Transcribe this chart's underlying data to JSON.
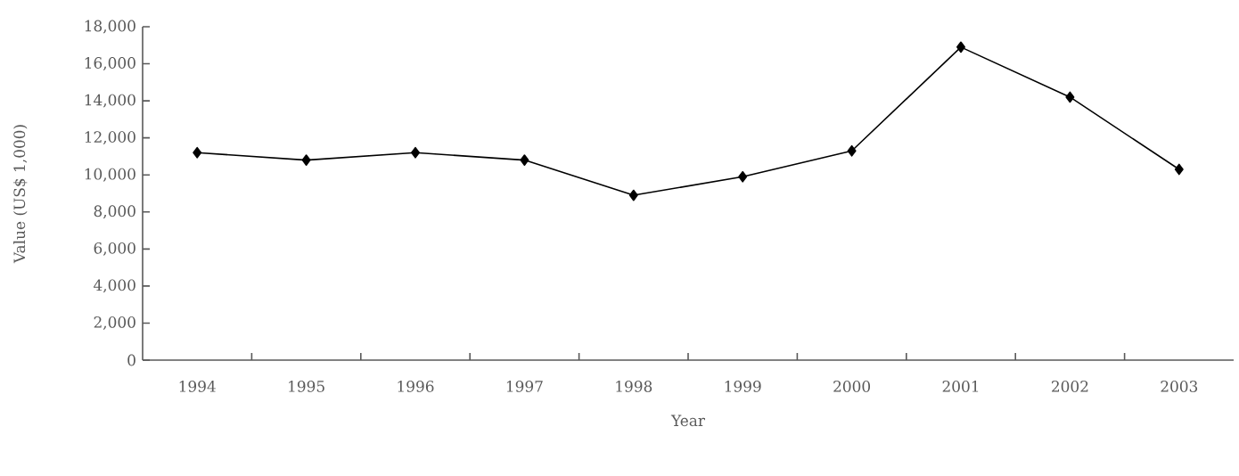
{
  "chart_data": {
    "type": "line",
    "xlabel": "Year",
    "ylabel": "Value (US$ 1,000)",
    "categories": [
      "1994",
      "1995",
      "1996",
      "1997",
      "1998",
      "1999",
      "2000",
      "2001",
      "2002",
      "2003"
    ],
    "series": [
      {
        "color": "#000000",
        "values": [
          11200,
          10800,
          11200,
          10800,
          8900,
          9900,
          11300,
          16900,
          14200,
          10300
        ]
      }
    ],
    "ylim": [
      0,
      18000
    ],
    "yticks": [
      0,
      {
        "value": 2000,
        "label": "2,000"
      },
      {
        "value": 4000,
        "label": "4,000"
      },
      {
        "value": 6000,
        "label": "6,000"
      },
      {
        "value": 8000,
        "label": "8,000"
      },
      {
        "value": 10000,
        "label": "10,000"
      },
      {
        "value": 12000,
        "label": "12,000"
      },
      {
        "value": 14000,
        "label": "14,000"
      },
      {
        "value": 16000,
        "label": "16,000"
      },
      {
        "value": 18000,
        "label": "18,000"
      }
    ],
    "marker": "diamond",
    "line_style": "solid",
    "grid": false
  }
}
